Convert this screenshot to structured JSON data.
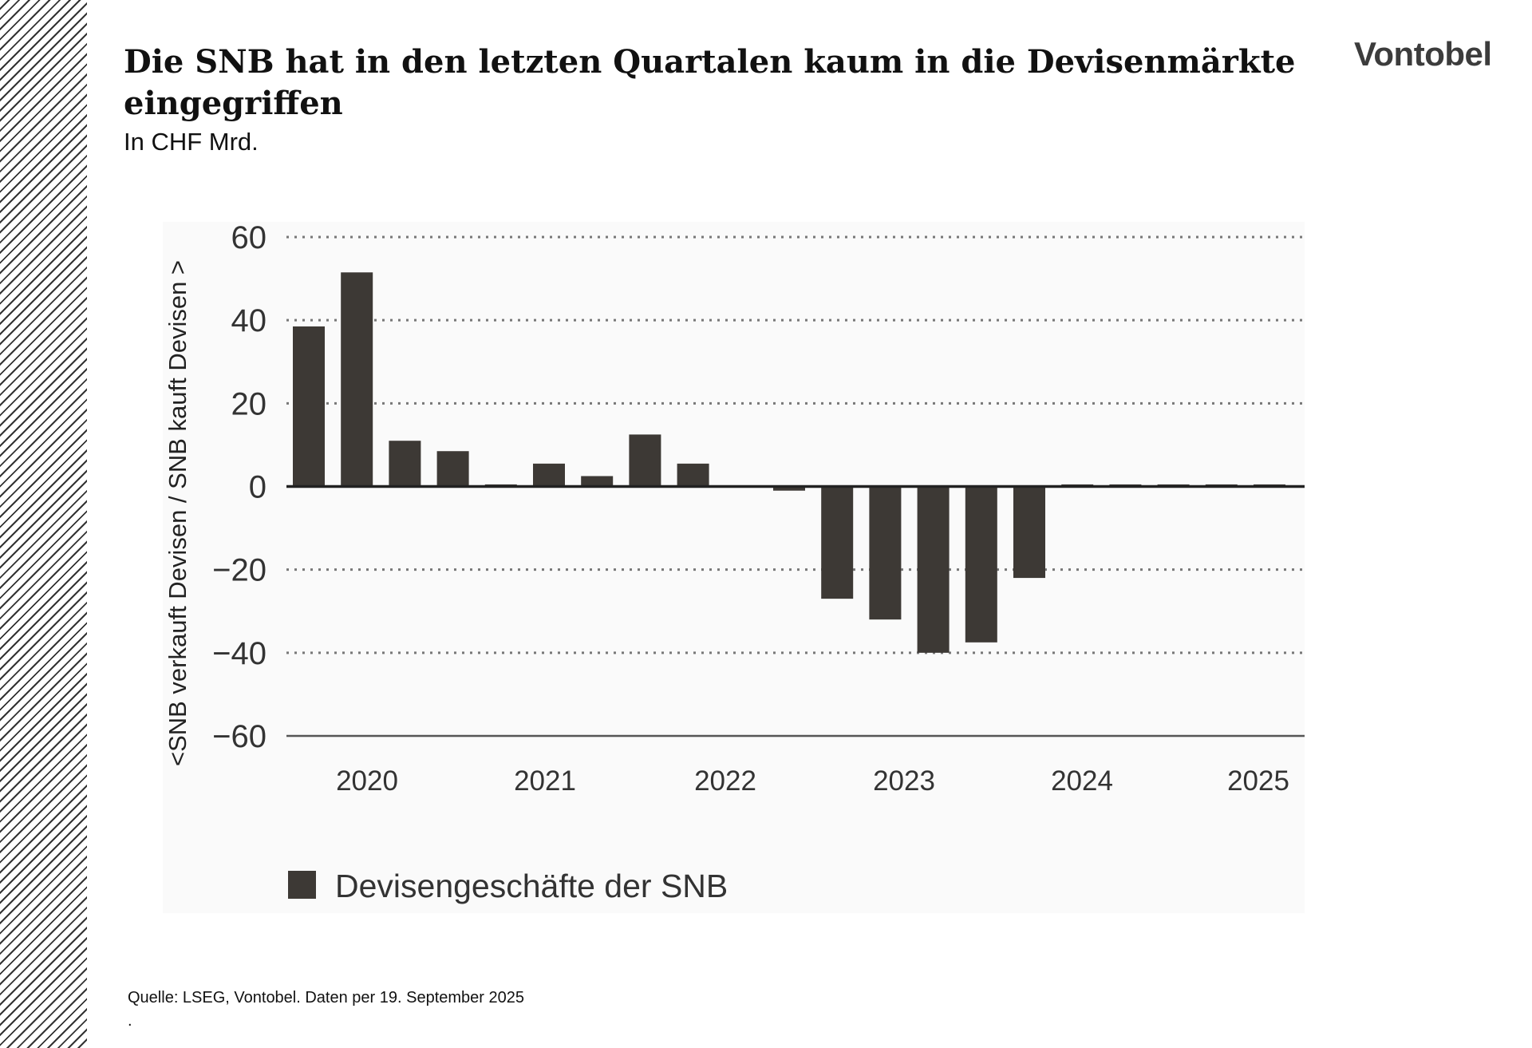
{
  "header": {
    "title": "Die SNB hat in den letzten Quartalen kaum in die Devisenmärkte eingegriffen",
    "subtitle": "In CHF Mrd.",
    "logo": "Vontobel"
  },
  "footer": {
    "source": "Quelle: LSEG, Vontobel. Daten per 19. September 2025",
    "trailing": "."
  },
  "colors": {
    "bar": "#3d3935",
    "panel": "#fafafa",
    "grid": "#777777"
  },
  "chart_data": {
    "type": "bar",
    "title": "",
    "ylabel": "<SNB verkauft Devisen / SNB kauft Devisen >",
    "xlabel": "",
    "ylim": [
      -60,
      60
    ],
    "yticks": [
      60,
      40,
      20,
      0,
      -20,
      -40,
      -60
    ],
    "ytick_labels": [
      "60",
      "40",
      "20",
      "0",
      "−20",
      "−40",
      "−60"
    ],
    "grid": "horizontal dotted",
    "legend_position": "bottom-left",
    "xtick_labels": [
      "2020",
      "2021",
      "2022",
      "2023",
      "2024",
      "2025"
    ],
    "categories": [
      "2020 Q1",
      "2020 Q2",
      "2020 Q3",
      "2020 Q4",
      "2021 Q1",
      "2021 Q2",
      "2021 Q3",
      "2021 Q4",
      "2022 Q1",
      "2022 Q2",
      "2022 Q3",
      "2022 Q4",
      "2023 Q1",
      "2023 Q2",
      "2023 Q3",
      "2023 Q4",
      "2024 Q1",
      "2024 Q2",
      "2024 Q3",
      "2024 Q4",
      "2025 Q1"
    ],
    "series": [
      {
        "name": "Devisengeschäfte der SNB",
        "values": [
          38.5,
          51.5,
          11,
          8.5,
          0.5,
          5.5,
          2.5,
          12.5,
          5.5,
          0,
          -1,
          -27,
          -32,
          -40,
          -37.5,
          -22,
          0.5,
          0.5,
          0.5,
          0.5,
          0.5
        ]
      }
    ]
  }
}
